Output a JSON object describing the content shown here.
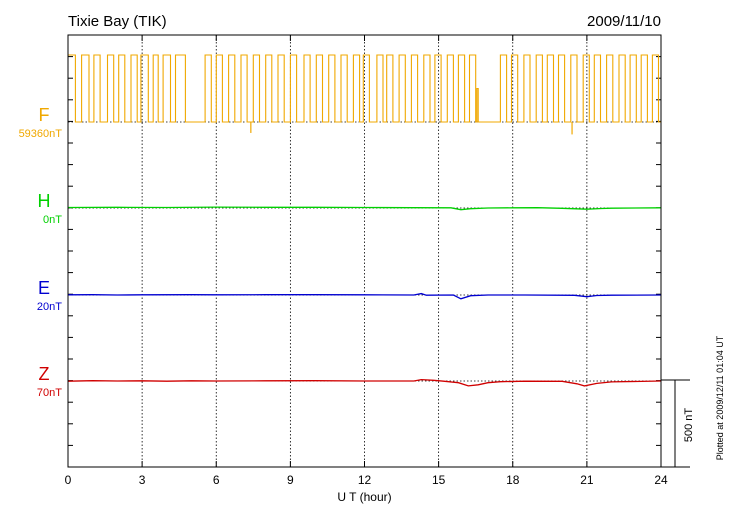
{
  "header": {
    "station": "Tixie Bay (TIK)",
    "date": "2009/11/10"
  },
  "footer": {
    "plotted": "Plotted at 2009/12/11 01:04 UT"
  },
  "chart_data": {
    "type": "line",
    "xlabel": "U T (hour)",
    "xlim": [
      0,
      24
    ],
    "xticks": [
      "0",
      "3",
      "6",
      "9",
      "12",
      "15",
      "18",
      "21",
      "24"
    ],
    "scale_bar": {
      "label": "500 nT",
      "value_nT": 500
    },
    "series": [
      {
        "name": "F",
        "baseline": "59360nT",
        "color": "#f0a800",
        "steps": [
          [
            0.1,
            1
          ],
          [
            0.3,
            0
          ],
          [
            0.55,
            1
          ],
          [
            0.85,
            0
          ],
          [
            1.05,
            1
          ],
          [
            1.3,
            0
          ],
          [
            1.6,
            1
          ],
          [
            1.85,
            0
          ],
          [
            2.05,
            1
          ],
          [
            2.3,
            0
          ],
          [
            2.55,
            1
          ],
          [
            2.8,
            0
          ],
          [
            2.95,
            1
          ],
          [
            3.25,
            0
          ],
          [
            3.45,
            1
          ],
          [
            3.65,
            0
          ],
          [
            3.85,
            1
          ],
          [
            4.15,
            0
          ],
          [
            4.35,
            1
          ],
          [
            4.75,
            0
          ],
          [
            5.55,
            1
          ],
          [
            5.8,
            0
          ],
          [
            6.0,
            1
          ],
          [
            6.25,
            0
          ],
          [
            6.5,
            1
          ],
          [
            6.75,
            0
          ],
          [
            7.0,
            1
          ],
          [
            7.25,
            0
          ],
          [
            7.5,
            1
          ],
          [
            7.75,
            0
          ],
          [
            8.0,
            1
          ],
          [
            8.25,
            0
          ],
          [
            8.5,
            1
          ],
          [
            8.75,
            0
          ],
          [
            9.0,
            1
          ],
          [
            9.25,
            0
          ],
          [
            9.55,
            1
          ],
          [
            9.8,
            0
          ],
          [
            10.05,
            1
          ],
          [
            10.3,
            0
          ],
          [
            10.55,
            1
          ],
          [
            10.8,
            0
          ],
          [
            11.05,
            1
          ],
          [
            11.3,
            0
          ],
          [
            11.55,
            1
          ],
          [
            11.8,
            0
          ],
          [
            11.95,
            1
          ],
          [
            12.2,
            0
          ],
          [
            12.5,
            1
          ],
          [
            12.75,
            0
          ],
          [
            12.9,
            1
          ],
          [
            13.15,
            0
          ],
          [
            13.4,
            1
          ],
          [
            13.65,
            0
          ],
          [
            13.9,
            1
          ],
          [
            14.15,
            0
          ],
          [
            14.4,
            1
          ],
          [
            14.65,
            0
          ],
          [
            14.85,
            1
          ],
          [
            15.1,
            0
          ],
          [
            15.35,
            1
          ],
          [
            15.6,
            0
          ],
          [
            15.8,
            1
          ],
          [
            16.05,
            0
          ],
          [
            16.25,
            1
          ],
          [
            16.5,
            0
          ],
          [
            16.55,
            0.5
          ],
          [
            16.6,
            0
          ],
          [
            17.5,
            1
          ],
          [
            17.75,
            0
          ],
          [
            17.95,
            1
          ],
          [
            18.2,
            0
          ],
          [
            18.45,
            1
          ],
          [
            18.7,
            0
          ],
          [
            18.95,
            1
          ],
          [
            19.2,
            0
          ],
          [
            19.4,
            1
          ],
          [
            19.65,
            0
          ],
          [
            19.85,
            1
          ],
          [
            20.1,
            0
          ],
          [
            20.35,
            1
          ],
          [
            20.6,
            0
          ],
          [
            20.85,
            1
          ],
          [
            21.1,
            0
          ],
          [
            21.3,
            1
          ],
          [
            21.55,
            0
          ],
          [
            21.8,
            1
          ],
          [
            22.05,
            0
          ],
          [
            22.3,
            1
          ],
          [
            22.55,
            0
          ],
          [
            22.75,
            1
          ],
          [
            23.0,
            0
          ],
          [
            23.2,
            1
          ],
          [
            23.45,
            0
          ],
          [
            23.65,
            1
          ],
          [
            23.9,
            0
          ]
        ],
        "spikes": [
          {
            "x": 7.4,
            "depth_nT": 370
          },
          {
            "x": 20.4,
            "depth_nT": 420
          }
        ]
      },
      {
        "name": "H",
        "baseline": "0nT",
        "color": "#00d000",
        "points": [
          [
            0,
            3
          ],
          [
            2,
            4
          ],
          [
            4,
            3
          ],
          [
            6,
            5
          ],
          [
            8,
            4
          ],
          [
            10,
            4
          ],
          [
            12,
            3
          ],
          [
            14,
            2
          ],
          [
            15.5,
            1
          ],
          [
            15.9,
            -10
          ],
          [
            16.3,
            -4
          ],
          [
            17,
            0
          ],
          [
            18,
            1
          ],
          [
            19,
            2
          ],
          [
            20,
            -2
          ],
          [
            21,
            -7
          ],
          [
            21.6,
            -3
          ],
          [
            22,
            -1
          ],
          [
            24,
            1
          ]
        ]
      },
      {
        "name": "E",
        "baseline": "20nT",
        "color": "#0000d0",
        "points": [
          [
            0,
            1
          ],
          [
            1,
            2
          ],
          [
            2,
            0
          ],
          [
            3,
            1
          ],
          [
            5,
            2
          ],
          [
            6,
            1
          ],
          [
            8,
            2
          ],
          [
            10,
            2
          ],
          [
            12,
            1
          ],
          [
            14,
            0
          ],
          [
            14.3,
            8
          ],
          [
            14.5,
            -1
          ],
          [
            15.6,
            0
          ],
          [
            15.9,
            -22
          ],
          [
            16.3,
            -4
          ],
          [
            17,
            0
          ],
          [
            18.5,
            0
          ],
          [
            20.5,
            -2
          ],
          [
            21,
            -10
          ],
          [
            21.4,
            -3
          ],
          [
            22,
            -1
          ],
          [
            24,
            0
          ]
        ]
      },
      {
        "name": "Z",
        "baseline": "70nT",
        "color": "#d00000",
        "points": [
          [
            0,
            -1
          ],
          [
            1,
            2
          ],
          [
            2,
            0
          ],
          [
            3,
            1
          ],
          [
            4,
            -1
          ],
          [
            5,
            1
          ],
          [
            6,
            0
          ],
          [
            8,
            1
          ],
          [
            10,
            2
          ],
          [
            12,
            0
          ],
          [
            14,
            0
          ],
          [
            14.3,
            8
          ],
          [
            14.8,
            4
          ],
          [
            15.2,
            -1
          ],
          [
            15.8,
            -10
          ],
          [
            16.2,
            -28
          ],
          [
            16.6,
            -22
          ],
          [
            17,
            -10
          ],
          [
            17.5,
            -4
          ],
          [
            18.5,
            -1
          ],
          [
            20,
            -2
          ],
          [
            20.6,
            -16
          ],
          [
            20.9,
            -28
          ],
          [
            21.4,
            -14
          ],
          [
            22,
            -5
          ],
          [
            24,
            0
          ]
        ]
      }
    ]
  }
}
